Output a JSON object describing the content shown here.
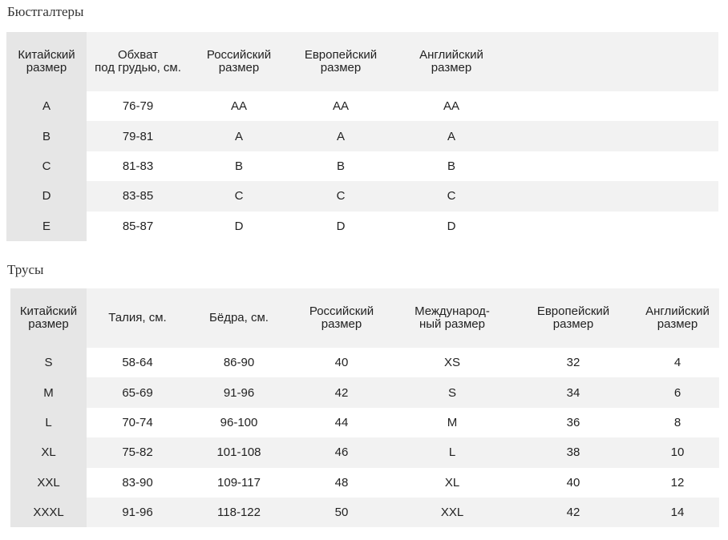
{
  "bras": {
    "title": "Бюстгалтеры",
    "headers": [
      "Китайский\nразмер",
      "Обхват\nпод грудью, см.",
      "Российский\nразмер",
      "Европейский\nразмер",
      "Английский\nразмер"
    ],
    "rows": [
      [
        "A",
        "76-79",
        "AA",
        "AA",
        "AA"
      ],
      [
        "B",
        "79-81",
        "A",
        "A",
        "A"
      ],
      [
        "C",
        "81-83",
        "B",
        "B",
        "B"
      ],
      [
        "D",
        "83-85",
        "C",
        "C",
        "C"
      ],
      [
        "E",
        "85-87",
        "D",
        "D",
        "D"
      ]
    ]
  },
  "panties": {
    "title": "Трусы",
    "headers": [
      "Китайский\nразмер",
      "Талия, см.",
      "Бёдра, см.",
      "Российский\nразмер",
      "Международ-\nный размер",
      "Европейский\nразмер",
      "Английский\nразмер"
    ],
    "rows": [
      [
        "S",
        "58-64",
        "86-90",
        "40",
        "XS",
        "32",
        "4"
      ],
      [
        "M",
        "65-69",
        "91-96",
        "42",
        "S",
        "34",
        "6"
      ],
      [
        "L",
        "70-74",
        "96-100",
        "44",
        "M",
        "36",
        "8"
      ],
      [
        "XL",
        "75-82",
        "101-108",
        "46",
        "L",
        "38",
        "10"
      ],
      [
        "XXL",
        "83-90",
        "109-117",
        "48",
        "XL",
        "40",
        "12"
      ],
      [
        "XXXL",
        "91-96",
        "118-122",
        "50",
        "XXL",
        "42",
        "14"
      ]
    ]
  }
}
